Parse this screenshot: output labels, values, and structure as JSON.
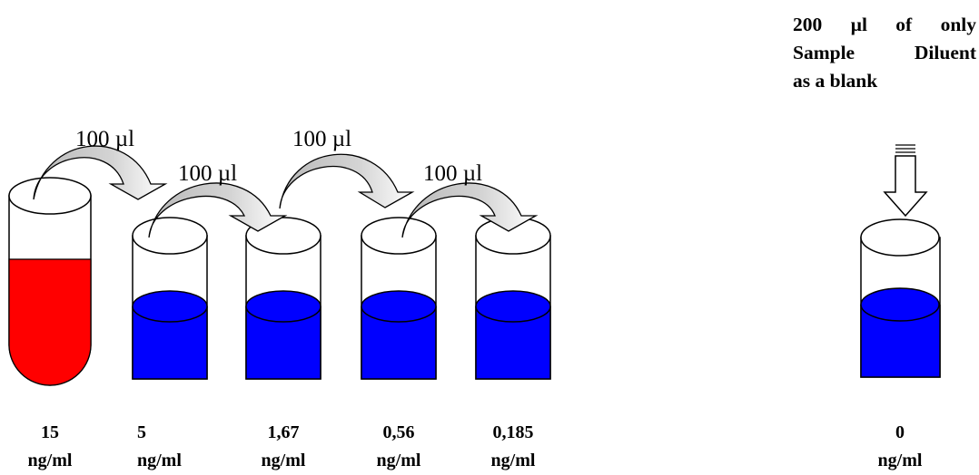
{
  "transfers": [
    {
      "volume": "100 µl"
    },
    {
      "volume": "100 µl"
    },
    {
      "volume": "100 µl"
    },
    {
      "volume": "100 µl"
    }
  ],
  "tubes": [
    {
      "value": "15",
      "unit": "ng/ml",
      "liquid_color": "#ff0000",
      "fill_level": 0.55
    },
    {
      "value": "5",
      "unit": "ng/ml",
      "liquid_color": "#0000ff",
      "fill_level": 0.55
    },
    {
      "value": "1,67",
      "unit": "ng/ml",
      "liquid_color": "#0000ff",
      "fill_level": 0.55
    },
    {
      "value": "0,56",
      "unit": "ng/ml",
      "liquid_color": "#0000ff",
      "fill_level": 0.55
    },
    {
      "value": "0,185",
      "unit": "ng/ml",
      "liquid_color": "#0000ff",
      "fill_level": 0.55
    }
  ],
  "blank": {
    "value": "0",
    "unit": "ng/ml",
    "liquid_color": "#0000ff",
    "note_lines": [
      "200 µl of only",
      "Sample Diluent",
      "as a blank"
    ]
  }
}
